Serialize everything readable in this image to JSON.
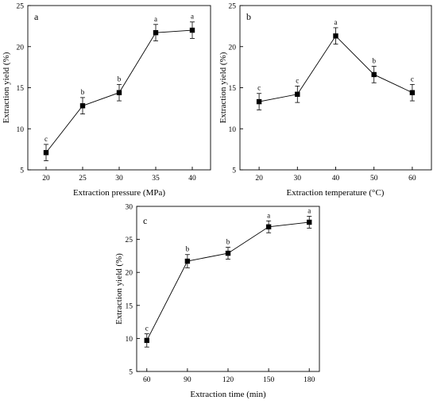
{
  "chart_data": [
    {
      "type": "line",
      "panel_label": "a",
      "xlabel": "Extraction pressure (MPa)",
      "ylabel": "Extraction yield (%)",
      "x": [
        20,
        25,
        30,
        35,
        40
      ],
      "y": [
        7.1,
        12.8,
        14.4,
        21.7,
        22.0
      ],
      "error": [
        1.0,
        1.0,
        1.0,
        1.0,
        1.0
      ],
      "significance": [
        "c",
        "b",
        "b",
        "a",
        "a"
      ],
      "xlim": [
        17.5,
        42.5
      ],
      "ylim": [
        5,
        25
      ],
      "xticks": [
        20,
        25,
        30,
        35,
        40
      ],
      "yticks": [
        5,
        10,
        15,
        20,
        25
      ]
    },
    {
      "type": "line",
      "panel_label": "b",
      "xlabel": "Extraction temperature (°C)",
      "ylabel": "Extraction yield (%)",
      "x": [
        20,
        30,
        40,
        50,
        60
      ],
      "y": [
        13.3,
        14.2,
        21.3,
        16.6,
        14.4
      ],
      "error": [
        1.0,
        1.0,
        1.0,
        1.0,
        1.0
      ],
      "significance": [
        "c",
        "c",
        "a",
        "b",
        "c"
      ],
      "xlim": [
        15,
        65
      ],
      "ylim": [
        5,
        25
      ],
      "xticks": [
        20,
        30,
        40,
        50,
        60
      ],
      "yticks": [
        5,
        10,
        15,
        20,
        25
      ]
    },
    {
      "type": "line",
      "panel_label": "c",
      "xlabel": "Extraction time (min)",
      "ylabel": "Extraction yield (%)",
      "x": [
        60,
        90,
        120,
        150,
        180
      ],
      "y": [
        9.7,
        21.7,
        22.9,
        26.9,
        27.6
      ],
      "error": [
        1.0,
        1.0,
        0.9,
        0.9,
        0.9
      ],
      "significance": [
        "c",
        "b",
        "b",
        "a",
        "a"
      ],
      "xlim": [
        52.5,
        187.5
      ],
      "ylim": [
        5,
        30
      ],
      "xticks": [
        60,
        90,
        120,
        150,
        180
      ],
      "yticks": [
        5,
        10,
        15,
        20,
        25,
        30
      ]
    }
  ]
}
